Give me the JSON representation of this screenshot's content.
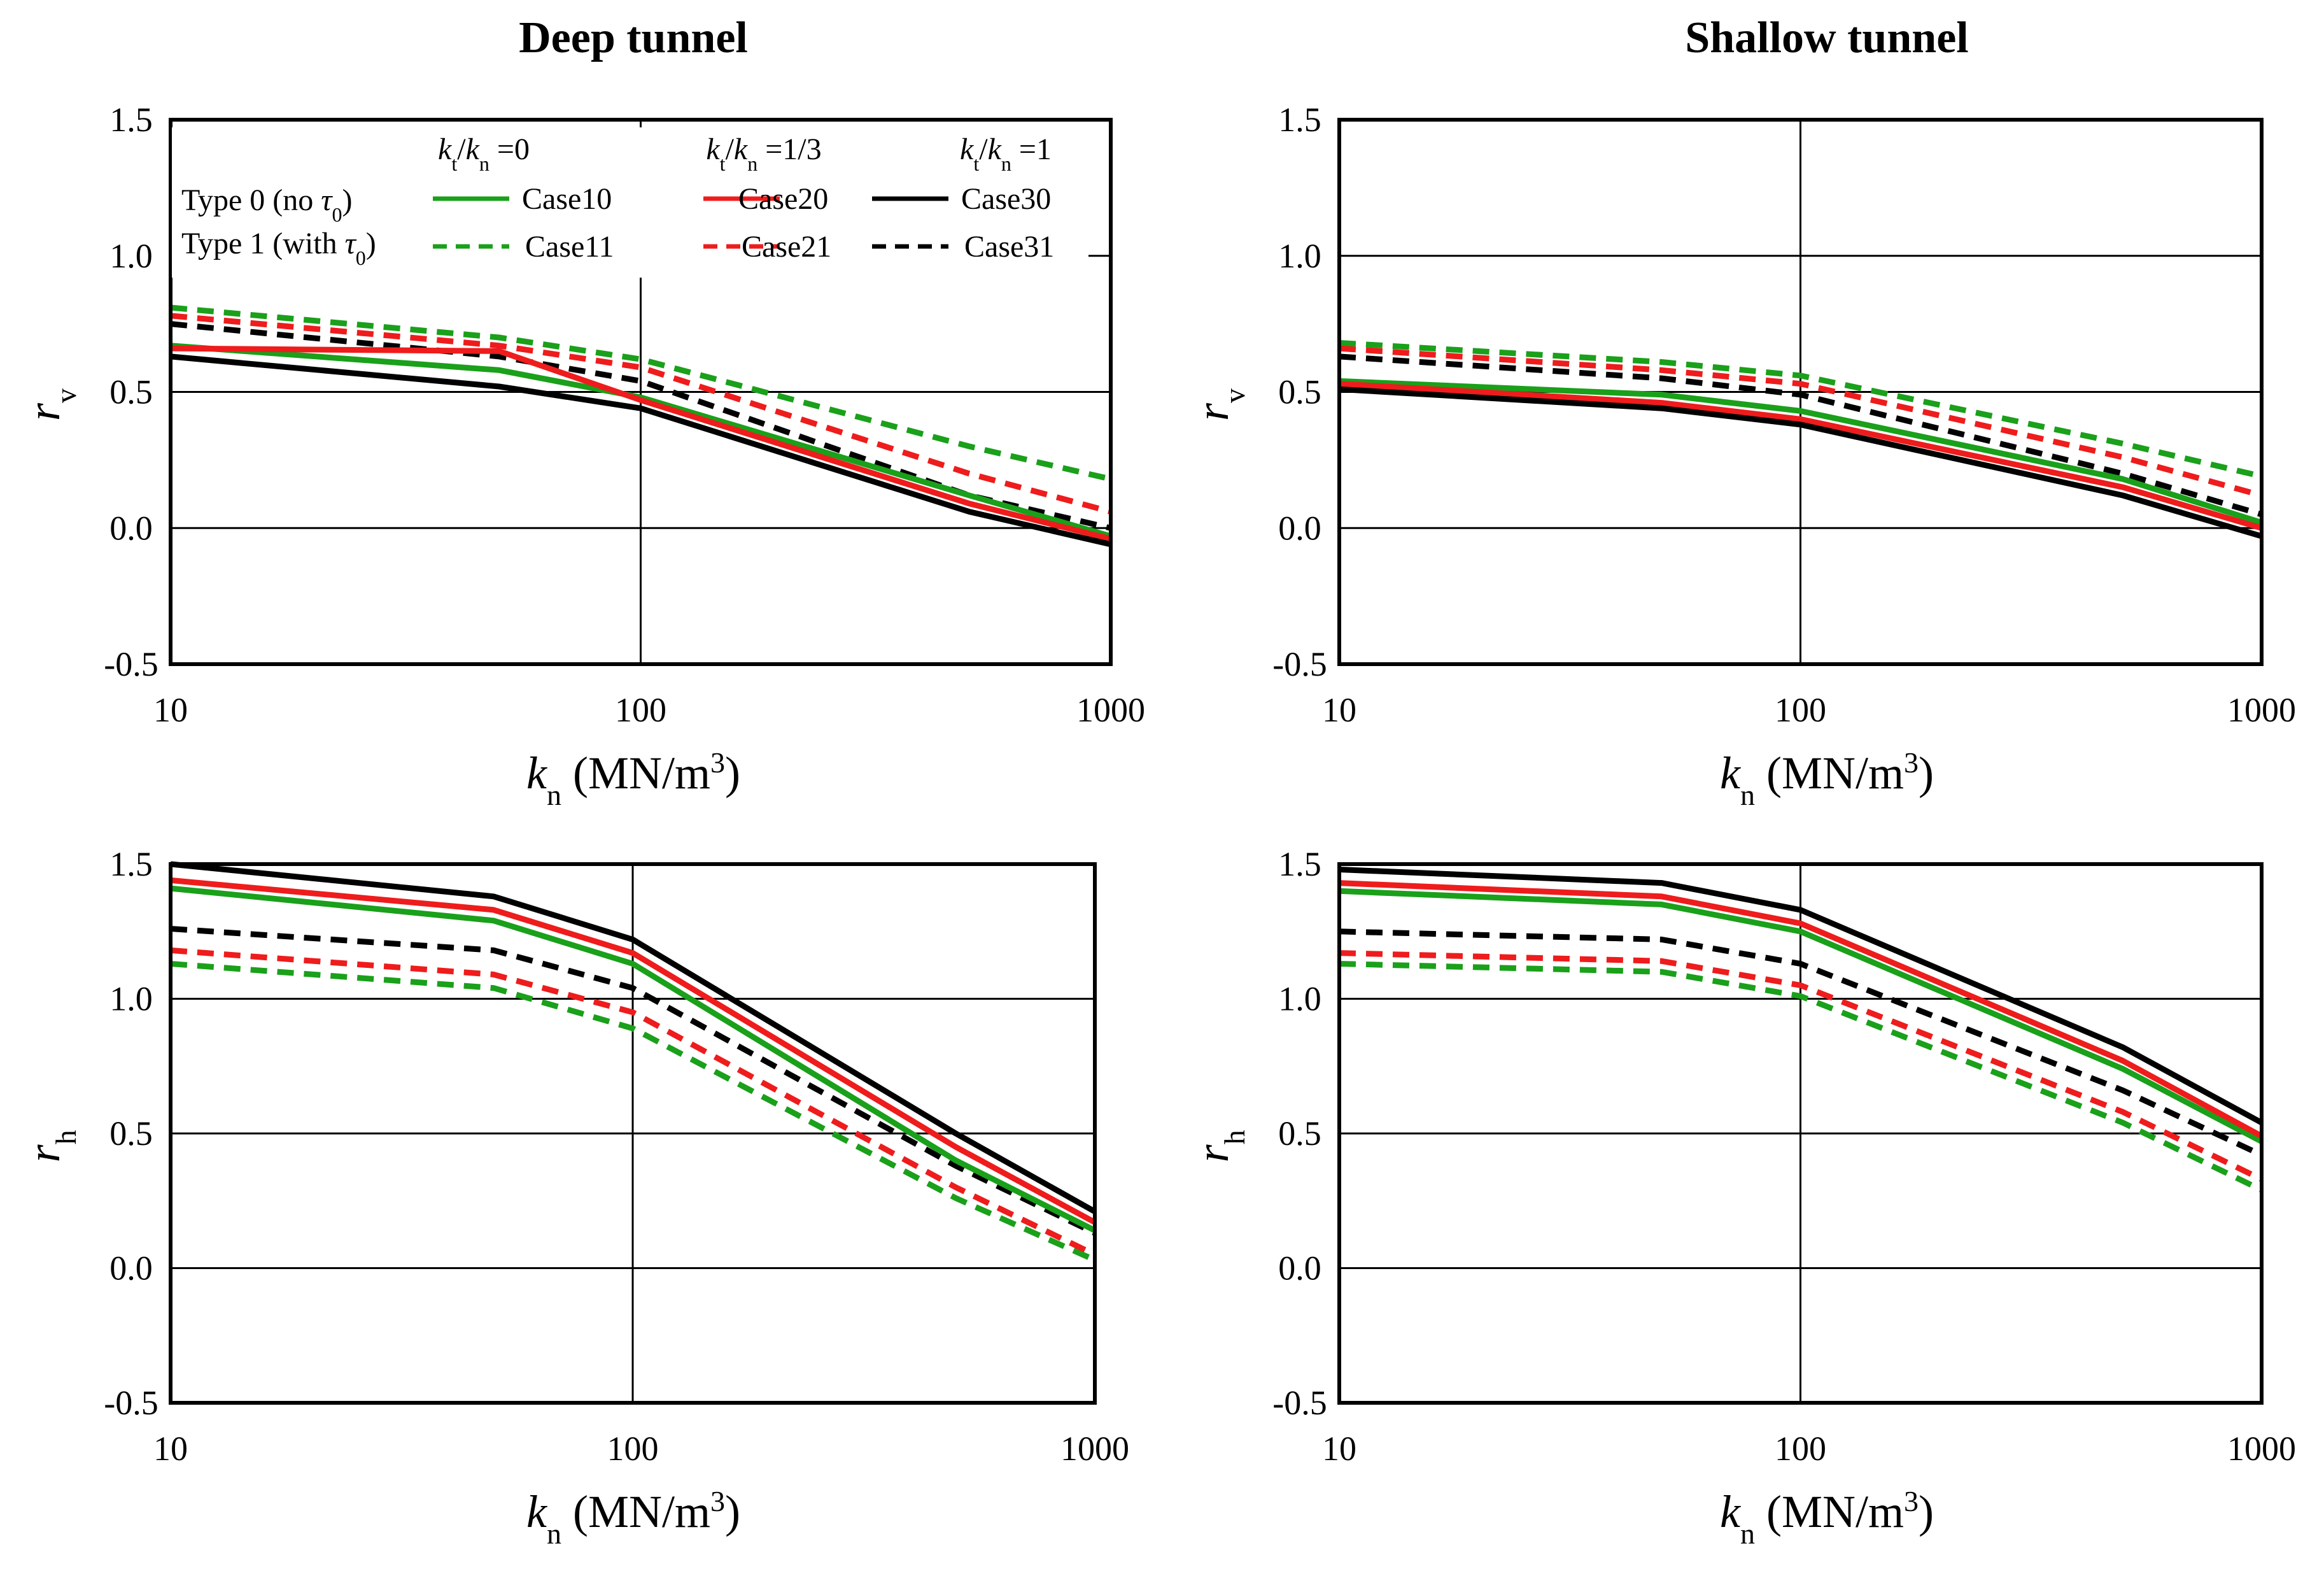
{
  "titles": {
    "deep": "Deep tunnel",
    "shallow": "Shallow tunnel"
  },
  "legend": {
    "ratio_prefix": "k",
    "ratio_sub_t": "t",
    "ratio_slash": "/",
    "ratio_k": "k",
    "ratio_sub_n": "n",
    "ratios": [
      "=0",
      "=1/3",
      "=1"
    ],
    "type0_label": "Type 0 (no",
    "type1_label": "Type 1 (with",
    "tau_symbol": "τ",
    "tau_sub": "0",
    "close_paren": ")",
    "cases": [
      {
        "name": "Case10",
        "color": "#1aa01a",
        "dash": false
      },
      {
        "name": "Case20",
        "color": "#ee1c1c",
        "dash": false
      },
      {
        "name": "Case30",
        "color": "#000000",
        "dash": false
      },
      {
        "name": "Case11",
        "color": "#1aa01a",
        "dash": true
      },
      {
        "name": "Case21",
        "color": "#ee1c1c",
        "dash": true
      },
      {
        "name": "Case31",
        "color": "#000000",
        "dash": true
      }
    ]
  },
  "xlabel": {
    "k": "k",
    "sub": "n",
    "unit": " (MN/m",
    "sup": "3",
    "close": ")"
  },
  "ylabels": {
    "rv_main": "r",
    "rv_sub": "v",
    "rh_main": "r",
    "rh_sub": "h"
  },
  "x_ticks": [
    "10",
    "100",
    "1000"
  ],
  "y_ticks": [
    "1.5",
    "1.0",
    "0.5",
    "0.0",
    "-0.5"
  ],
  "chart_data": [
    {
      "id": "deep-rv",
      "type": "line",
      "title": "Deep tunnel",
      "xlabel": "kn (MN/m3)",
      "ylabel": "rv",
      "xscale": "log",
      "xlim": [
        10,
        1000
      ],
      "ylim": [
        -0.5,
        1.5
      ],
      "x": [
        10,
        50,
        100,
        500,
        1000
      ],
      "series": [
        {
          "name": "Case10",
          "values": [
            0.67,
            0.58,
            0.48,
            0.12,
            -0.03
          ]
        },
        {
          "name": "Case20",
          "values": [
            0.66,
            0.65,
            0.47,
            0.09,
            -0.04
          ]
        },
        {
          "name": "Case30",
          "values": [
            0.63,
            0.52,
            0.44,
            0.06,
            -0.06
          ]
        },
        {
          "name": "Case11",
          "values": [
            0.81,
            0.7,
            0.62,
            0.3,
            0.18
          ]
        },
        {
          "name": "Case21",
          "values": [
            0.78,
            0.67,
            0.59,
            0.2,
            0.06
          ]
        },
        {
          "name": "Case31",
          "values": [
            0.75,
            0.63,
            0.54,
            0.12,
            0.0
          ]
        }
      ]
    },
    {
      "id": "shallow-rv",
      "type": "line",
      "title": "Shallow tunnel",
      "xlabel": "kn (MN/m3)",
      "ylabel": "rv",
      "xscale": "log",
      "xlim": [
        10,
        1000
      ],
      "ylim": [
        -0.5,
        1.5
      ],
      "x": [
        10,
        50,
        100,
        500,
        1000
      ],
      "series": [
        {
          "name": "Case10",
          "values": [
            0.54,
            0.49,
            0.43,
            0.18,
            0.02
          ]
        },
        {
          "name": "Case20",
          "values": [
            0.53,
            0.46,
            0.4,
            0.15,
            0.0
          ]
        },
        {
          "name": "Case30",
          "values": [
            0.51,
            0.44,
            0.38,
            0.12,
            -0.03
          ]
        },
        {
          "name": "Case11",
          "values": [
            0.68,
            0.61,
            0.56,
            0.31,
            0.19
          ]
        },
        {
          "name": "Case21",
          "values": [
            0.66,
            0.58,
            0.53,
            0.26,
            0.12
          ]
        },
        {
          "name": "Case31",
          "values": [
            0.63,
            0.55,
            0.49,
            0.2,
            0.05
          ]
        }
      ]
    },
    {
      "id": "deep-rh",
      "type": "line",
      "title": "",
      "xlabel": "kn (MN/m3)",
      "ylabel": "rh",
      "xscale": "log",
      "xlim": [
        10,
        1000
      ],
      "ylim": [
        -0.5,
        1.5
      ],
      "x": [
        10,
        50,
        100,
        500,
        1000
      ],
      "series": [
        {
          "name": "Case10",
          "values": [
            1.41,
            1.29,
            1.13,
            0.4,
            0.14
          ]
        },
        {
          "name": "Case20",
          "values": [
            1.44,
            1.33,
            1.17,
            0.45,
            0.17
          ]
        },
        {
          "name": "Case30",
          "values": [
            1.5,
            1.38,
            1.22,
            0.5,
            0.21
          ]
        },
        {
          "name": "Case11",
          "values": [
            1.13,
            1.04,
            0.89,
            0.26,
            0.03
          ]
        },
        {
          "name": "Case21",
          "values": [
            1.18,
            1.09,
            0.95,
            0.3,
            0.05
          ]
        },
        {
          "name": "Case31",
          "values": [
            1.26,
            1.18,
            1.04,
            0.38,
            0.13
          ]
        }
      ]
    },
    {
      "id": "shallow-rh",
      "type": "line",
      "title": "",
      "xlabel": "kn (MN/m3)",
      "ylabel": "rh",
      "xscale": "log",
      "xlim": [
        10,
        1000
      ],
      "ylim": [
        -0.5,
        1.5
      ],
      "x": [
        10,
        50,
        100,
        500,
        1000
      ],
      "series": [
        {
          "name": "Case10",
          "values": [
            1.4,
            1.35,
            1.25,
            0.74,
            0.47
          ]
        },
        {
          "name": "Case20",
          "values": [
            1.43,
            1.38,
            1.28,
            0.77,
            0.49
          ]
        },
        {
          "name": "Case30",
          "values": [
            1.48,
            1.43,
            1.33,
            0.82,
            0.54
          ]
        },
        {
          "name": "Case11",
          "values": [
            1.13,
            1.1,
            1.01,
            0.54,
            0.29
          ]
        },
        {
          "name": "Case21",
          "values": [
            1.17,
            1.14,
            1.05,
            0.58,
            0.33
          ]
        },
        {
          "name": "Case31",
          "values": [
            1.25,
            1.22,
            1.13,
            0.66,
            0.42
          ]
        }
      ]
    }
  ]
}
